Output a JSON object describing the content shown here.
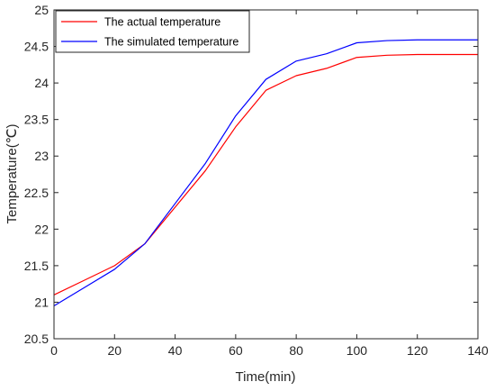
{
  "chart_data": {
    "type": "line",
    "xlabel": "Time(min)",
    "ylabel": "Temperature(℃)",
    "xlim": [
      0,
      140
    ],
    "ylim": [
      20.5,
      25
    ],
    "xticks": [
      0,
      20,
      40,
      60,
      80,
      100,
      120,
      140
    ],
    "yticks": [
      20.5,
      21,
      21.5,
      22,
      22.5,
      23,
      23.5,
      24,
      24.5,
      25
    ],
    "x_tick_labels": [
      "0",
      "20",
      "40",
      "60",
      "80",
      "100",
      "120",
      "140"
    ],
    "y_tick_labels": [
      "20.5",
      "21",
      "21.5",
      "22",
      "22.5",
      "23",
      "23.5",
      "24",
      "24.5",
      "25"
    ],
    "grid": false,
    "legend_position": "top-left",
    "series": [
      {
        "name": "The actual temperature",
        "color": "#ff0000",
        "x": [
          0,
          10,
          20,
          30,
          40,
          50,
          60,
          70,
          80,
          90,
          100,
          110,
          120,
          130,
          140
        ],
        "y": [
          21.1,
          21.3,
          21.5,
          21.8,
          22.3,
          22.8,
          23.4,
          23.9,
          24.1,
          24.2,
          24.35,
          24.38,
          24.39,
          24.39,
          24.39
        ]
      },
      {
        "name": "The simulated temperature",
        "color": "#0000ff",
        "x": [
          0,
          10,
          20,
          30,
          40,
          50,
          60,
          70,
          80,
          90,
          100,
          110,
          120,
          130,
          140
        ],
        "y": [
          20.95,
          21.2,
          21.45,
          21.8,
          22.35,
          22.9,
          23.55,
          24.05,
          24.3,
          24.4,
          24.55,
          24.58,
          24.59,
          24.59,
          24.59
        ]
      }
    ]
  }
}
